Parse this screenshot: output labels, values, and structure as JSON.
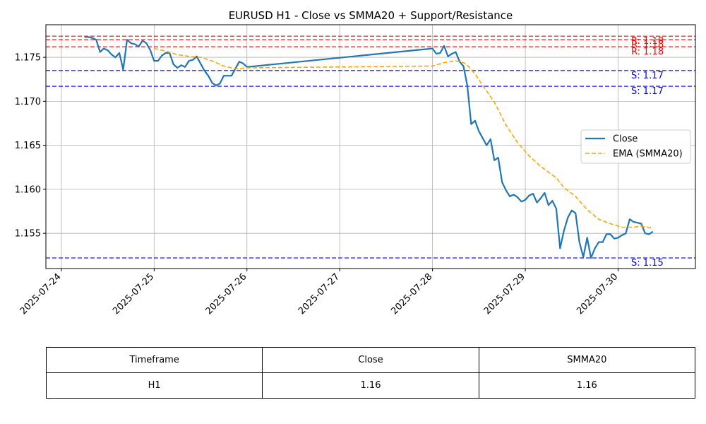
{
  "chart_data": {
    "type": "line",
    "title": "EURUSD H1 - Close vs SMMA20 + Support/Resistance",
    "xlabel": "",
    "ylabel": "",
    "xlim": [
      "2025-07-23 20:00",
      "2025-07-30 20:00"
    ],
    "ylim": [
      1.151,
      1.1787
    ],
    "grid": true,
    "legend_position": "center-right",
    "x_tick_labels": [
      "2025-07-24",
      "2025-07-25",
      "2025-07-26",
      "2025-07-27",
      "2025-07-28",
      "2025-07-29",
      "2025-07-30"
    ],
    "y_tick_labels": [
      "1.155",
      "1.160",
      "1.165",
      "1.170",
      "1.175"
    ],
    "colors": {
      "close": "#1f77b4",
      "ema": "#ffa500",
      "resistance": "#ff0000",
      "support": "#0000ff",
      "grid": "#b0b0b0"
    },
    "series": [
      {
        "name": "Close",
        "style": "solid",
        "points": [
          [
            "2025-07-24 06:00",
            1.1773
          ],
          [
            "2025-07-24 07:00",
            1.1773
          ],
          [
            "2025-07-24 08:00",
            1.1772
          ],
          [
            "2025-07-24 09:00",
            1.177
          ],
          [
            "2025-07-24 10:00",
            1.1756
          ],
          [
            "2025-07-24 11:00",
            1.176
          ],
          [
            "2025-07-24 12:00",
            1.1758
          ],
          [
            "2025-07-24 13:00",
            1.1753
          ],
          [
            "2025-07-24 14:00",
            1.175
          ],
          [
            "2025-07-24 15:00",
            1.1755
          ],
          [
            "2025-07-24 16:00",
            1.1736
          ],
          [
            "2025-07-24 17:00",
            1.177
          ],
          [
            "2025-07-24 18:00",
            1.1766
          ],
          [
            "2025-07-24 19:00",
            1.1765
          ],
          [
            "2025-07-24 20:00",
            1.1762
          ],
          [
            "2025-07-24 21:00",
            1.1769
          ],
          [
            "2025-07-24 22:00",
            1.1766
          ],
          [
            "2025-07-24 23:00",
            1.1758
          ],
          [
            "2025-07-25 00:00",
            1.1746
          ],
          [
            "2025-07-25 01:00",
            1.1746
          ],
          [
            "2025-07-25 02:00",
            1.1752
          ],
          [
            "2025-07-25 03:00",
            1.1755
          ],
          [
            "2025-07-25 04:00",
            1.1755
          ],
          [
            "2025-07-25 05:00",
            1.1742
          ],
          [
            "2025-07-25 06:00",
            1.1738
          ],
          [
            "2025-07-25 07:00",
            1.1741
          ],
          [
            "2025-07-25 08:00",
            1.1739
          ],
          [
            "2025-07-25 09:00",
            1.1746
          ],
          [
            "2025-07-25 10:00",
            1.1747
          ],
          [
            "2025-07-25 11:00",
            1.1751
          ],
          [
            "2025-07-25 12:00",
            1.1743
          ],
          [
            "2025-07-25 13:00",
            1.1735
          ],
          [
            "2025-07-25 14:00",
            1.1729
          ],
          [
            "2025-07-25 15:00",
            1.1721
          ],
          [
            "2025-07-25 16:00",
            1.1718
          ],
          [
            "2025-07-25 17:00",
            1.172
          ],
          [
            "2025-07-25 18:00",
            1.1729
          ],
          [
            "2025-07-25 19:00",
            1.1729
          ],
          [
            "2025-07-25 20:00",
            1.1729
          ],
          [
            "2025-07-25 21:00",
            1.1737
          ],
          [
            "2025-07-25 22:00",
            1.1745
          ],
          [
            "2025-07-25 23:00",
            1.1743
          ],
          [
            "2025-07-26 00:00",
            1.1739
          ],
          [
            "2025-07-28 00:00",
            1.176
          ],
          [
            "2025-07-28 01:00",
            1.1754
          ],
          [
            "2025-07-28 02:00",
            1.1755
          ],
          [
            "2025-07-28 03:00",
            1.1763
          ],
          [
            "2025-07-28 04:00",
            1.1751
          ],
          [
            "2025-07-28 05:00",
            1.1754
          ],
          [
            "2025-07-28 06:00",
            1.1756
          ],
          [
            "2025-07-28 07:00",
            1.1745
          ],
          [
            "2025-07-28 08:00",
            1.174
          ],
          [
            "2025-07-28 09:00",
            1.1718
          ],
          [
            "2025-07-28 10:00",
            1.1674
          ],
          [
            "2025-07-28 11:00",
            1.1678
          ],
          [
            "2025-07-28 12:00",
            1.1666
          ],
          [
            "2025-07-28 13:00",
            1.1658
          ],
          [
            "2025-07-28 14:00",
            1.165
          ],
          [
            "2025-07-28 15:00",
            1.1657
          ],
          [
            "2025-07-28 16:00",
            1.1633
          ],
          [
            "2025-07-28 17:00",
            1.1636
          ],
          [
            "2025-07-28 18:00",
            1.1608
          ],
          [
            "2025-07-28 19:00",
            1.1599
          ],
          [
            "2025-07-28 20:00",
            1.1592
          ],
          [
            "2025-07-28 21:00",
            1.1594
          ],
          [
            "2025-07-28 22:00",
            1.1591
          ],
          [
            "2025-07-28 23:00",
            1.1586
          ],
          [
            "2025-07-29 00:00",
            1.1588
          ],
          [
            "2025-07-29 01:00",
            1.1593
          ],
          [
            "2025-07-29 02:00",
            1.1595
          ],
          [
            "2025-07-29 03:00",
            1.1585
          ],
          [
            "2025-07-29 04:00",
            1.159
          ],
          [
            "2025-07-29 05:00",
            1.1596
          ],
          [
            "2025-07-29 06:00",
            1.1582
          ],
          [
            "2025-07-29 07:00",
            1.1587
          ],
          [
            "2025-07-29 08:00",
            1.1578
          ],
          [
            "2025-07-29 09:00",
            1.1533
          ],
          [
            "2025-07-29 10:00",
            1.1553
          ],
          [
            "2025-07-29 11:00",
            1.1568
          ],
          [
            "2025-07-29 12:00",
            1.1576
          ],
          [
            "2025-07-29 13:00",
            1.1573
          ],
          [
            "2025-07-29 14:00",
            1.154
          ],
          [
            "2025-07-29 15:00",
            1.1523
          ],
          [
            "2025-07-29 16:00",
            1.1545
          ],
          [
            "2025-07-29 17:00",
            1.1522
          ],
          [
            "2025-07-29 18:00",
            1.1533
          ],
          [
            "2025-07-29 19:00",
            1.154
          ],
          [
            "2025-07-29 20:00",
            1.154
          ],
          [
            "2025-07-29 21:00",
            1.1549
          ],
          [
            "2025-07-29 22:00",
            1.1549
          ],
          [
            "2025-07-29 23:00",
            1.1544
          ],
          [
            "2025-07-30 00:00",
            1.1545
          ],
          [
            "2025-07-30 01:00",
            1.1548
          ],
          [
            "2025-07-30 02:00",
            1.155
          ],
          [
            "2025-07-30 03:00",
            1.1566
          ],
          [
            "2025-07-30 04:00",
            1.1563
          ],
          [
            "2025-07-30 05:00",
            1.1562
          ],
          [
            "2025-07-30 06:00",
            1.1561
          ],
          [
            "2025-07-30 07:00",
            1.155
          ],
          [
            "2025-07-30 08:00",
            1.1549
          ],
          [
            "2025-07-30 09:00",
            1.1552
          ]
        ]
      },
      {
        "name": "EMA (SMMA20)",
        "style": "dashed",
        "points": [
          [
            "2025-07-25 00:00",
            1.176
          ],
          [
            "2025-07-25 03:00",
            1.1757
          ],
          [
            "2025-07-25 06:00",
            1.1753
          ],
          [
            "2025-07-25 09:00",
            1.1751
          ],
          [
            "2025-07-25 12:00",
            1.175
          ],
          [
            "2025-07-25 15:00",
            1.1746
          ],
          [
            "2025-07-25 18:00",
            1.174
          ],
          [
            "2025-07-25 21:00",
            1.1737
          ],
          [
            "2025-07-26 00:00",
            1.1738
          ],
          [
            "2025-07-28 00:00",
            1.174
          ],
          [
            "2025-07-28 03:00",
            1.1744
          ],
          [
            "2025-07-28 06:00",
            1.1746
          ],
          [
            "2025-07-28 08:00",
            1.1744
          ],
          [
            "2025-07-28 09:00",
            1.1741
          ],
          [
            "2025-07-28 11:00",
            1.1731
          ],
          [
            "2025-07-28 13:00",
            1.1718
          ],
          [
            "2025-07-28 16:00",
            1.1699
          ],
          [
            "2025-07-28 19:00",
            1.1673
          ],
          [
            "2025-07-28 22:00",
            1.1653
          ],
          [
            "2025-07-29 01:00",
            1.1638
          ],
          [
            "2025-07-29 04:00",
            1.1626
          ],
          [
            "2025-07-29 08:00",
            1.1613
          ],
          [
            "2025-07-29 10:00",
            1.1602
          ],
          [
            "2025-07-29 13:00",
            1.1592
          ],
          [
            "2025-07-29 16:00",
            1.1577
          ],
          [
            "2025-07-29 19:00",
            1.1566
          ],
          [
            "2025-07-29 22:00",
            1.1561
          ],
          [
            "2025-07-30 01:00",
            1.1557
          ],
          [
            "2025-07-30 04:00",
            1.1557
          ],
          [
            "2025-07-30 06:00",
            1.1558
          ],
          [
            "2025-07-30 09:00",
            1.1556
          ]
        ]
      }
    ],
    "levels": [
      {
        "type": "resistance",
        "value": 1.1774,
        "label": "R: 1.18"
      },
      {
        "type": "resistance",
        "value": 1.177,
        "label": "R: 1.18"
      },
      {
        "type": "resistance",
        "value": 1.1762,
        "label": "R: 1.18"
      },
      {
        "type": "support",
        "value": 1.1735,
        "label": "S: 1.17"
      },
      {
        "type": "support",
        "value": 1.1717,
        "label": "S: 1.17"
      },
      {
        "type": "support",
        "value": 1.1522,
        "label": "S: 1.15"
      }
    ]
  },
  "table": {
    "headers": [
      "Timeframe",
      "Close",
      "SMMA20"
    ],
    "rows": [
      [
        "H1",
        "1.16",
        "1.16"
      ]
    ]
  }
}
